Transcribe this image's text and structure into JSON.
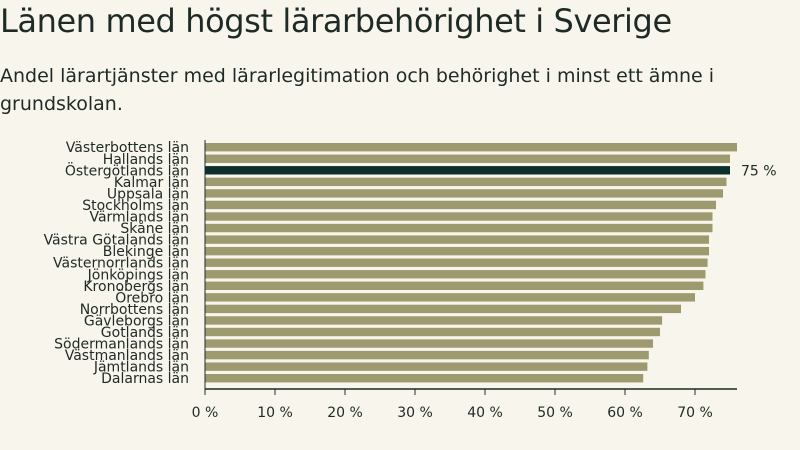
{
  "title": "Länen med högst lärarbehörighet i Sverige",
  "subtitle": "Andel lärartjänster med lärarlegitimation och behörighet i minst ett ämne i grundskolan.",
  "colors": {
    "bar": "#9e9a6f",
    "highlight": "#0d2f2c",
    "axis": "#1e2a26",
    "background": "#f8f5ec"
  },
  "chart_data": {
    "type": "bar",
    "orientation": "horizontal",
    "categories": [
      "Västerbottens län",
      "Hallands län",
      "Östergötlands län",
      "Kalmar län",
      "Uppsala län",
      "Stockholms län",
      "Värmlands län",
      "Skåne län",
      "Västra Götalands län",
      "Blekinge län",
      "Västernorrlands län",
      "Jönköpings län",
      "Kronobergs län",
      "Örebro län",
      "Norrbottens län",
      "Gävleborgs län",
      "Gotlands län",
      "Södermanlands län",
      "Västmanlands län",
      "Jämtlands län",
      "Dalarnas län"
    ],
    "values": [
      76,
      75,
      75,
      74.5,
      74,
      73,
      72.5,
      72.5,
      72,
      72,
      71.8,
      71.5,
      71.2,
      70,
      68,
      65.3,
      65,
      64,
      63.4,
      63.2,
      62.6
    ],
    "highlight": "Östergötlands län",
    "data_labels": {
      "Östergötlands län": "75 %"
    },
    "xlim": [
      0,
      76
    ],
    "xticks": [
      0,
      10,
      20,
      30,
      40,
      50,
      60,
      70
    ],
    "xtick_labels": [
      "0 %",
      "10 %",
      "20 %",
      "30 %",
      "40 %",
      "50 %",
      "60 %",
      "70 %"
    ],
    "xlabel": "",
    "ylabel": "",
    "grid": false
  }
}
